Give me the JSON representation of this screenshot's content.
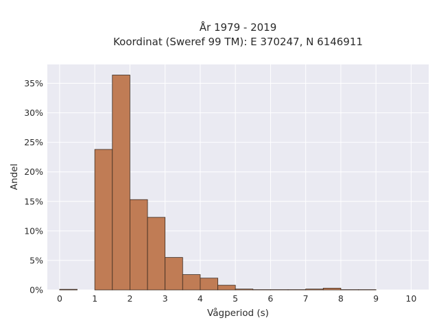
{
  "chart_data": {
    "type": "bar",
    "title_lines": [
      "År 1979 - 2019",
      "Koordinat (Sweref 99 TM): E 370247, N 6146911"
    ],
    "xlabel": "Vågperiod (s)",
    "ylabel": "Andel",
    "xlim": [
      -0.35,
      10.5
    ],
    "ylim": [
      0,
      38.2
    ],
    "xticks": [
      0,
      1,
      2,
      3,
      4,
      5,
      6,
      7,
      8,
      9,
      10
    ],
    "yticks": [
      0,
      5,
      10,
      15,
      20,
      25,
      30,
      35
    ],
    "ytick_labels": [
      "0%",
      "5%",
      "10%",
      "15%",
      "20%",
      "25%",
      "30%",
      "35%"
    ],
    "bin_width": 0.5,
    "bins": [
      {
        "start": 0.0,
        "value": 0.1
      },
      {
        "start": 0.5,
        "value": 0.0
      },
      {
        "start": 1.0,
        "value": 23.8
      },
      {
        "start": 1.5,
        "value": 36.4
      },
      {
        "start": 2.0,
        "value": 15.3
      },
      {
        "start": 2.5,
        "value": 12.3
      },
      {
        "start": 3.0,
        "value": 5.5
      },
      {
        "start": 3.5,
        "value": 2.6
      },
      {
        "start": 4.0,
        "value": 2.0
      },
      {
        "start": 4.5,
        "value": 0.8
      },
      {
        "start": 5.0,
        "value": 0.15
      },
      {
        "start": 5.5,
        "value": 0.05
      },
      {
        "start": 6.0,
        "value": 0.05
      },
      {
        "start": 6.5,
        "value": 0.05
      },
      {
        "start": 7.0,
        "value": 0.15
      },
      {
        "start": 7.5,
        "value": 0.3
      },
      {
        "start": 8.0,
        "value": 0.05
      },
      {
        "start": 8.5,
        "value": 0.05
      }
    ],
    "grid": true,
    "colors": {
      "bar_fill": "#c07c55",
      "bar_stroke": "#3a2a20",
      "plot_bg": "#eaeaf2",
      "grid": "#ffffff",
      "text": "#2a2a2a"
    }
  }
}
